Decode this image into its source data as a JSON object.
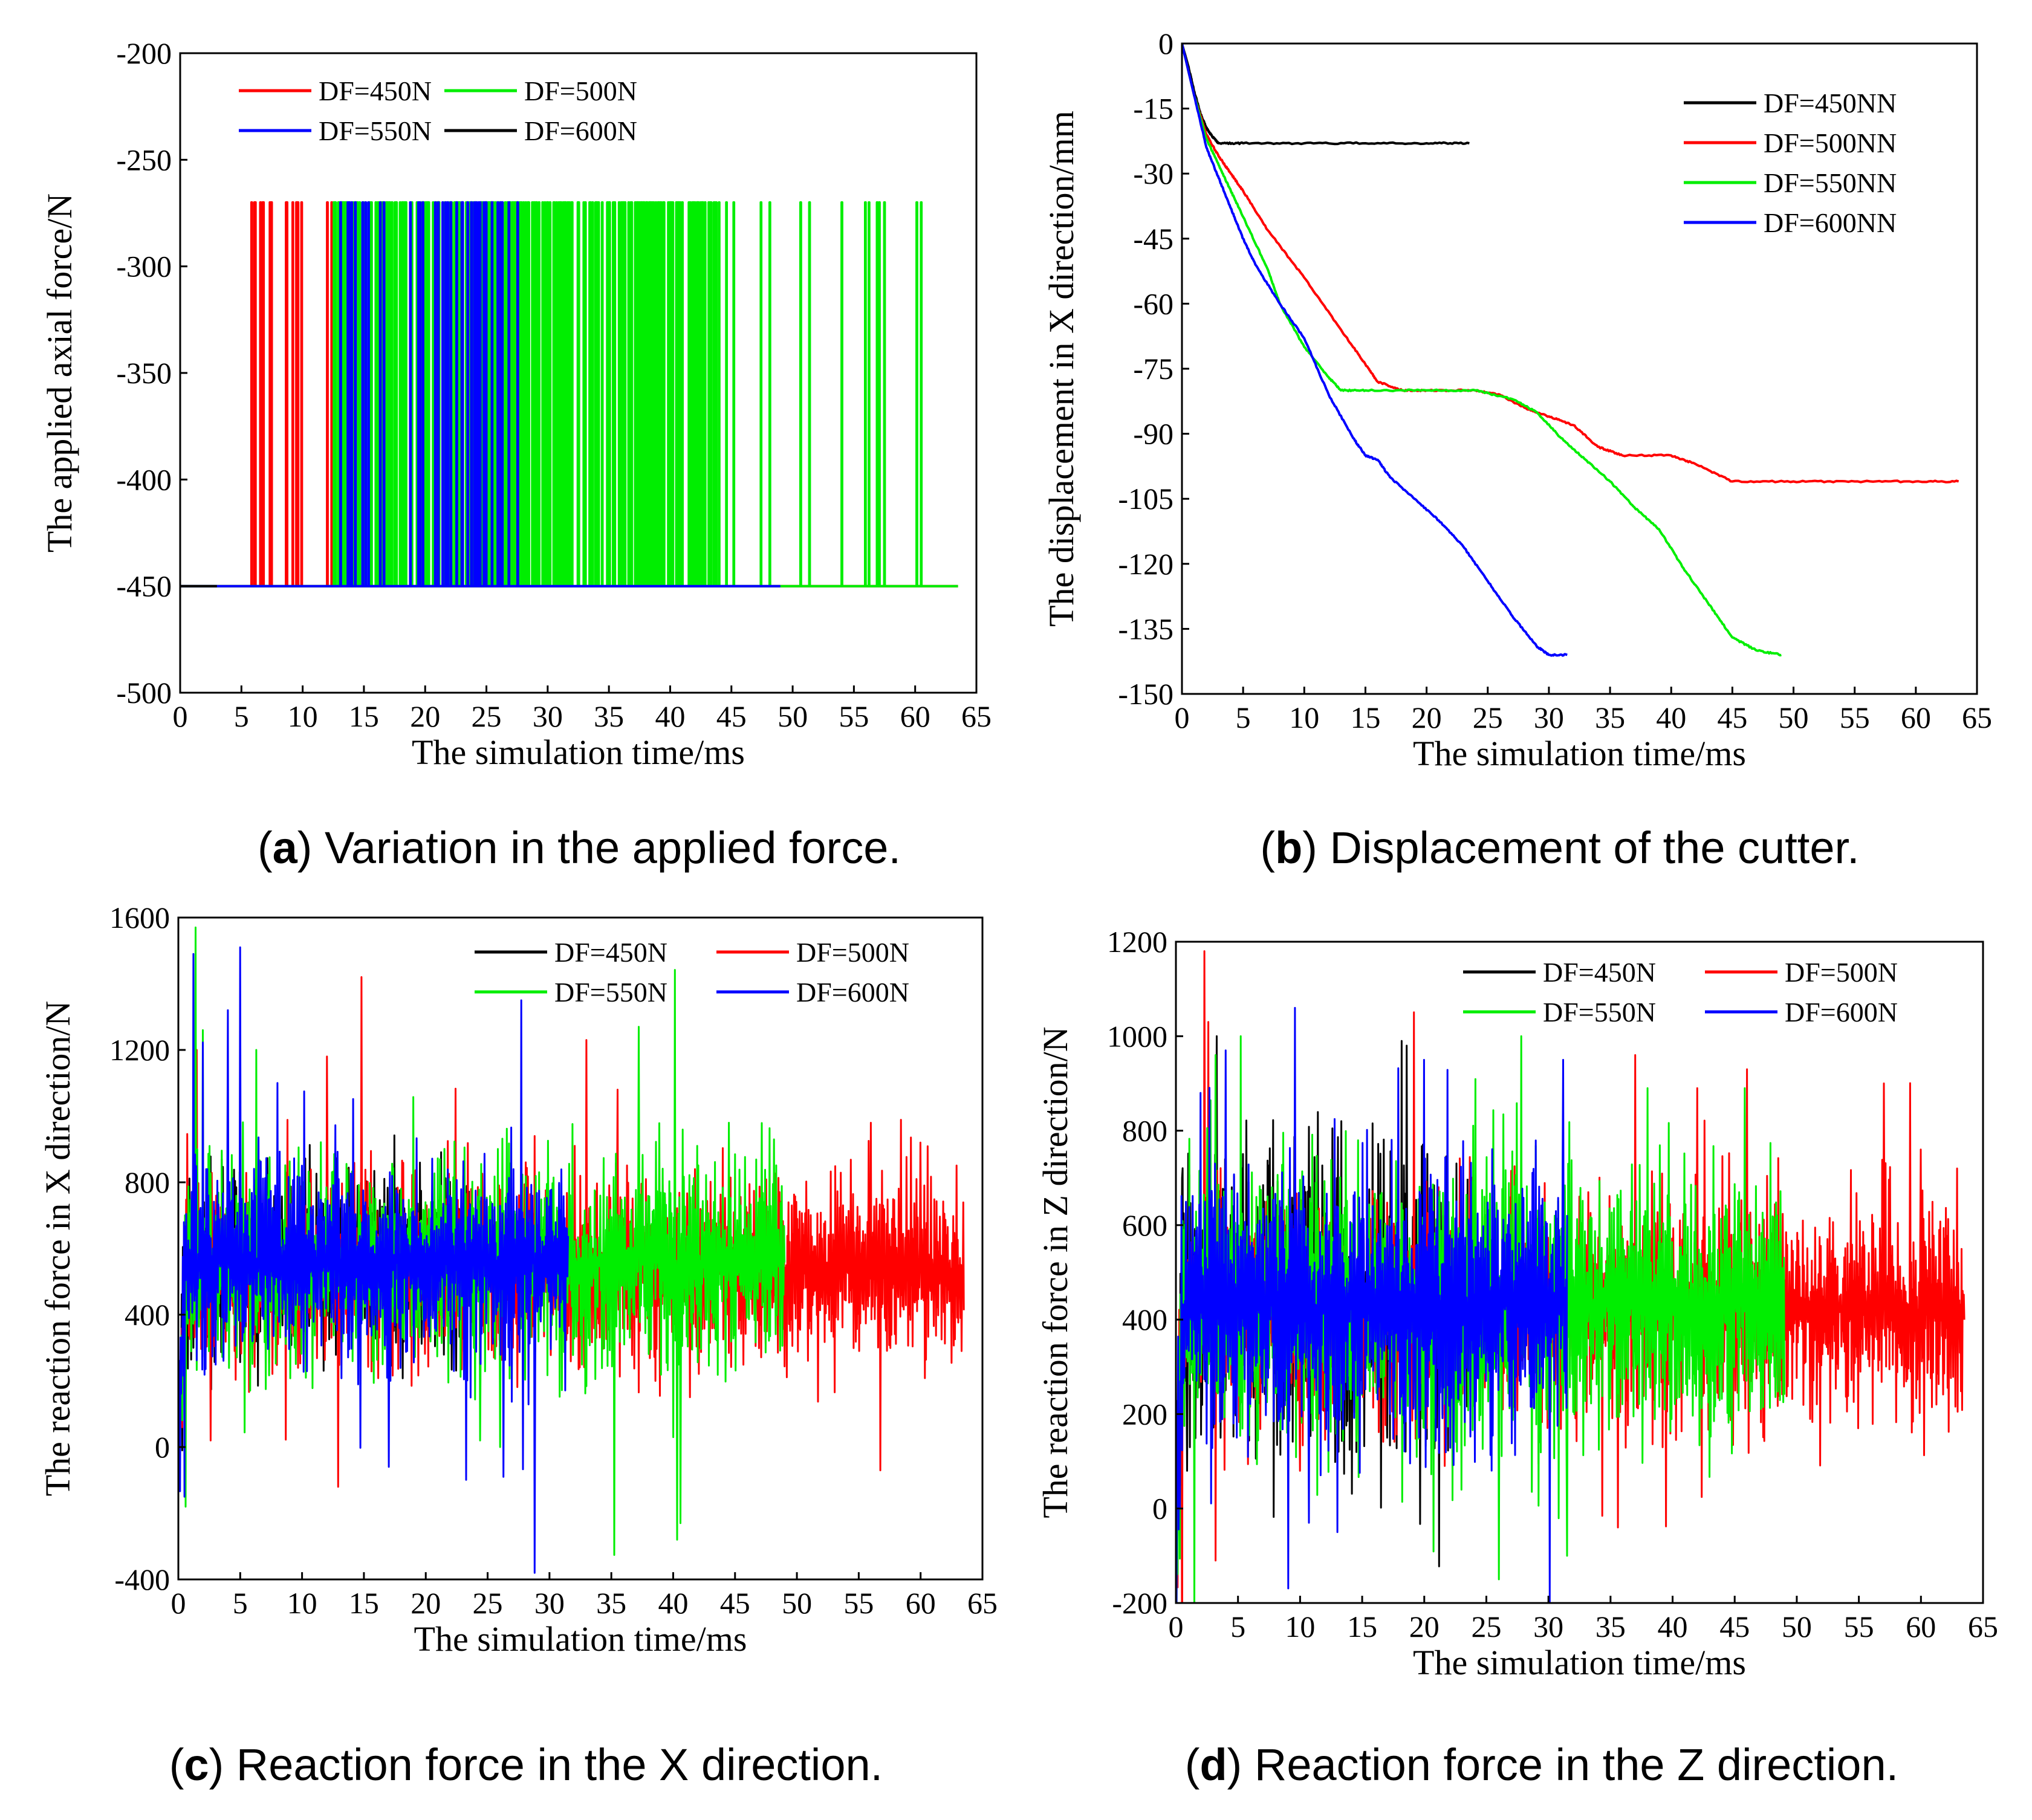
{
  "colors": {
    "black": "#000000",
    "red": "#ff0000",
    "green": "#00ee00",
    "blue": "#0000ff"
  },
  "chart_data": [
    {
      "id": "a",
      "type": "line",
      "caption_letter": "a",
      "caption_text": " Variation in the applied force.",
      "xlabel": "The simulation time/ms",
      "ylabel": "The applied axial force/N",
      "xlim": [
        0,
        65
      ],
      "ylim": [
        -500,
        -200
      ],
      "xticks": [
        0,
        5,
        10,
        15,
        20,
        25,
        30,
        35,
        40,
        45,
        50,
        55,
        60,
        65
      ],
      "yticks": [
        -500,
        -450,
        -400,
        -350,
        -300,
        -250,
        -200
      ],
      "legend": [
        {
          "label": "DF=450N",
          "color": "#ff0000"
        },
        {
          "label": "DF=500N",
          "color": "#00ee00"
        },
        {
          "label": "DF=550N",
          "color": "#0000ff"
        },
        {
          "label": "DF=600N",
          "color": "#000000"
        }
      ],
      "series": [
        {
          "name": "DF=450N",
          "color": "#ff0000",
          "kind": "pulse",
          "base": -450,
          "high": -270,
          "t_end": 63.5,
          "bands": [
            [
              3,
              13,
              0.22
            ]
          ]
        },
        {
          "name": "DF=500N",
          "color": "#00ee00",
          "kind": "pulse",
          "base": -450,
          "high": -270,
          "t_end": 63.5,
          "bands": [
            [
              12.5,
              44,
              0.75
            ],
            [
              44,
              63.5,
              0.12
            ]
          ]
        },
        {
          "name": "DF=550N",
          "color": "#0000ff",
          "kind": "pulse",
          "base": -450,
          "high": -270,
          "t_end": 49,
          "bands": [
            [
              12.5,
              28,
              0.3
            ]
          ]
        },
        {
          "name": "DF=600N",
          "color": "#000000",
          "kind": "pulse",
          "base": -450,
          "high": -450,
          "t_end": 3,
          "bands": []
        }
      ]
    },
    {
      "id": "b",
      "type": "line",
      "caption_letter": "b",
      "caption_text": " Displacement of the cutter.",
      "xlabel": "The simulation time/ms",
      "ylabel": "The displacement in X direction/mm",
      "xlim": [
        0,
        65
      ],
      "ylim": [
        -150,
        0
      ],
      "xticks": [
        0,
        5,
        10,
        15,
        20,
        25,
        30,
        35,
        40,
        45,
        50,
        55,
        60,
        65
      ],
      "yticks": [
        0,
        -15,
        -30,
        -45,
        -60,
        -75,
        -90,
        -105,
        -120,
        -135,
        -150
      ],
      "legend": [
        {
          "label": "DF=450NN",
          "color": "#000000"
        },
        {
          "label": "DF=500NN",
          "color": "#ff0000"
        },
        {
          "label": "DF=550NN",
          "color": "#00ee00"
        },
        {
          "label": "DF=600NN",
          "color": "#0000ff"
        }
      ],
      "series": [
        {
          "name": "DF=450NN",
          "color": "#000000",
          "kind": "line",
          "x": [
            0,
            0.5,
            1,
            1.5,
            2,
            2.5,
            3,
            5,
            10,
            15,
            20,
            23.5
          ],
          "y": [
            0,
            -5,
            -11,
            -16,
            -19.5,
            -21.5,
            -23,
            -23,
            -23,
            -23,
            -23,
            -23
          ]
        },
        {
          "name": "DF=500NN",
          "color": "#ff0000",
          "kind": "line",
          "x": [
            0,
            1,
            2,
            3,
            4,
            5,
            7,
            10,
            13,
            15,
            16,
            18,
            20,
            24,
            26,
            28,
            30,
            32,
            34,
            36,
            40,
            42,
            45,
            50,
            55,
            60,
            63.5
          ],
          "y": [
            0,
            -12,
            -21,
            -26,
            -30,
            -34,
            -43,
            -54,
            -66,
            -74,
            -78,
            -80,
            -80,
            -80,
            -81,
            -84,
            -86,
            -88,
            -93,
            -95,
            -95,
            -97,
            -101,
            -101,
            -101,
            -101,
            -101
          ]
        },
        {
          "name": "DF=550NN",
          "color": "#00ee00",
          "kind": "line",
          "x": [
            0,
            1,
            2,
            3,
            4,
            5,
            7,
            8,
            10,
            12,
            13,
            15,
            20,
            24,
            27,
            29,
            31,
            33,
            35,
            37,
            39,
            41,
            43,
            45,
            47,
            49
          ],
          "y": [
            0,
            -12,
            -22,
            -28,
            -34,
            -40,
            -52,
            -60,
            -70,
            -77,
            -80,
            -80,
            -80,
            -80,
            -82,
            -85,
            -91,
            -96,
            -101,
            -107,
            -112,
            -121,
            -129,
            -137,
            -140,
            -141
          ]
        },
        {
          "name": "DF=600NN",
          "color": "#0000ff",
          "kind": "line",
          "x": [
            0,
            1,
            2,
            3,
            4,
            5,
            6,
            8,
            10,
            12,
            14,
            15,
            16,
            17,
            19,
            21,
            23,
            25,
            27,
            29,
            30,
            31.5
          ],
          "y": [
            0,
            -12,
            -24,
            -31,
            -38,
            -45,
            -51,
            -60,
            -68,
            -81,
            -91,
            -95,
            -96,
            -100,
            -105,
            -110,
            -116,
            -124,
            -132,
            -139,
            -141,
            -141
          ]
        }
      ]
    },
    {
      "id": "c",
      "type": "line",
      "caption_letter": "c",
      "caption_text": " Reaction force in the X direction.",
      "xlabel": "The simulation time/ms",
      "ylabel": "The reaction force in X direction/N",
      "xlim": [
        0,
        65
      ],
      "ylim": [
        -400,
        1600
      ],
      "xticks": [
        0,
        5,
        10,
        15,
        20,
        25,
        30,
        35,
        40,
        45,
        50,
        55,
        60,
        65
      ],
      "yticks": [
        -400,
        0,
        400,
        800,
        1200,
        1600
      ],
      "legend": [
        {
          "label": "DF=450N",
          "color": "#000000"
        },
        {
          "label": "DF=500N",
          "color": "#ff0000"
        },
        {
          "label": "DF=550N",
          "color": "#00ee00"
        },
        {
          "label": "DF=600N",
          "color": "#0000ff"
        }
      ],
      "series": [
        {
          "name": "DF=450N",
          "color": "#000000",
          "kind": "noise",
          "t_start": 0,
          "t_end": 23.5,
          "mean": 560,
          "amp": 200,
          "seed": 11,
          "spikes": [
            [
              0.3,
              -10
            ],
            [
              0.6,
              120
            ],
            [
              1.2,
              300
            ]
          ]
        },
        {
          "name": "DF=500N",
          "color": "#ff0000",
          "kind": "noise",
          "t_start": 0,
          "t_end": 63.5,
          "mean": 530,
          "amp": 210,
          "seed": 23,
          "spikes": [
            [
              0.3,
              60
            ],
            [
              1.5,
              1200
            ],
            [
              14.8,
              1420
            ],
            [
              12.9,
              -120
            ],
            [
              33,
              1230
            ],
            [
              35.5,
              1080
            ],
            [
              12,
              1180
            ],
            [
              2.6,
              20
            ],
            [
              56,
              980
            ],
            [
              60,
              920
            ],
            [
              63.8,
              740
            ],
            [
              30.5,
              520
            ]
          ]
        },
        {
          "name": "DF=550N",
          "color": "#00ee00",
          "kind": "noise",
          "t_start": 0,
          "t_end": 49,
          "mean": 560,
          "amp": 230,
          "seed": 37,
          "spikes": [
            [
              0.6,
              -180
            ],
            [
              1.4,
              1570
            ],
            [
              2.0,
              1260
            ],
            [
              6.3,
              1200
            ],
            [
              37.2,
              1270
            ],
            [
              40.3,
              -280
            ],
            [
              40.6,
              -230
            ],
            [
              26.0,
              0
            ],
            [
              24.4,
              20
            ],
            [
              44.5,
              980
            ],
            [
              40.0,
              30
            ]
          ]
        },
        {
          "name": "DF=600N",
          "color": "#0000ff",
          "kind": "noise",
          "t_start": 0,
          "t_end": 31.5,
          "mean": 560,
          "amp": 220,
          "seed": 53,
          "spikes": [
            [
              0.5,
              -150
            ],
            [
              1.2,
              1490
            ],
            [
              5.0,
              1510
            ],
            [
              4.0,
              1320
            ],
            [
              27.7,
              1350
            ],
            [
              28.8,
              -380
            ],
            [
              17.0,
              -60
            ],
            [
              26.3,
              -90
            ],
            [
              8.0,
              1100
            ]
          ]
        }
      ]
    },
    {
      "id": "d",
      "type": "line",
      "caption_letter": "d",
      "caption_text": " Reaction force in the Z direction.",
      "xlabel": "The simulation time/ms",
      "ylabel": "The reaction force in Z direction/N",
      "xlim": [
        0,
        65
      ],
      "ylim": [
        -200,
        1200
      ],
      "xticks": [
        0,
        5,
        10,
        15,
        20,
        25,
        30,
        35,
        40,
        45,
        50,
        55,
        60,
        65
      ],
      "yticks": [
        -200,
        0,
        200,
        400,
        600,
        800,
        1000,
        1200
      ],
      "legend": [
        {
          "label": "DF=450N",
          "color": "#000000"
        },
        {
          "label": "DF=500N",
          "color": "#ff0000"
        },
        {
          "label": "DF=550N",
          "color": "#00ee00"
        },
        {
          "label": "DF=600N",
          "color": "#0000ff"
        }
      ],
      "series": [
        {
          "name": "DF=450N",
          "color": "#000000",
          "kind": "noise",
          "t_start": 0,
          "t_end": 23.5,
          "mean": 440,
          "amp": 230,
          "seed": 71,
          "spikes": [
            [
              0.5,
              700
            ],
            [
              0.9,
              80
            ],
            [
              3.3,
              1000
            ],
            [
              18.2,
              990
            ],
            [
              18.6,
              980
            ],
            [
              3.6,
              150
            ],
            [
              17.0,
              150
            ]
          ]
        },
        {
          "name": "DF=500N",
          "color": "#ff0000",
          "kind": "noise",
          "t_start": 0,
          "t_end": 63.5,
          "mean": 420,
          "amp": 180,
          "seed": 83,
          "spikes": [
            [
              2.3,
              1180
            ],
            [
              3.2,
              -110
            ],
            [
              2.6,
              1030
            ],
            [
              35.6,
              -40
            ],
            [
              37.0,
              960
            ],
            [
              42.0,
              890
            ],
            [
              57.0,
              900
            ],
            [
              60.0,
              760
            ],
            [
              10.0,
              80
            ],
            [
              46.0,
              930
            ]
          ]
        },
        {
          "name": "DF=550N",
          "color": "#00ee00",
          "kind": "noise",
          "t_start": 0,
          "t_end": 49,
          "mean": 430,
          "amp": 220,
          "seed": 97,
          "spikes": [
            [
              26.0,
              -150
            ],
            [
              31.5,
              -100
            ],
            [
              27.8,
              1000
            ],
            [
              45.8,
              890
            ],
            [
              5.2,
              1000
            ],
            [
              23.0,
              40
            ],
            [
              38.0,
              890
            ],
            [
              3.2,
              960
            ]
          ]
        },
        {
          "name": "DF=600N",
          "color": "#0000ff",
          "kind": "noise",
          "t_start": 0,
          "t_end": 31.5,
          "mean": 430,
          "amp": 210,
          "seed": 109,
          "spikes": [
            [
              0.3,
              0
            ],
            [
              30.1,
              -200
            ],
            [
              9.6,
              1060
            ],
            [
              10.7,
              -30
            ],
            [
              13.0,
              -50
            ],
            [
              4.0,
              970
            ],
            [
              2.0,
              880
            ],
            [
              31.2,
              950
            ],
            [
              20.0,
              950
            ]
          ]
        }
      ]
    }
  ]
}
